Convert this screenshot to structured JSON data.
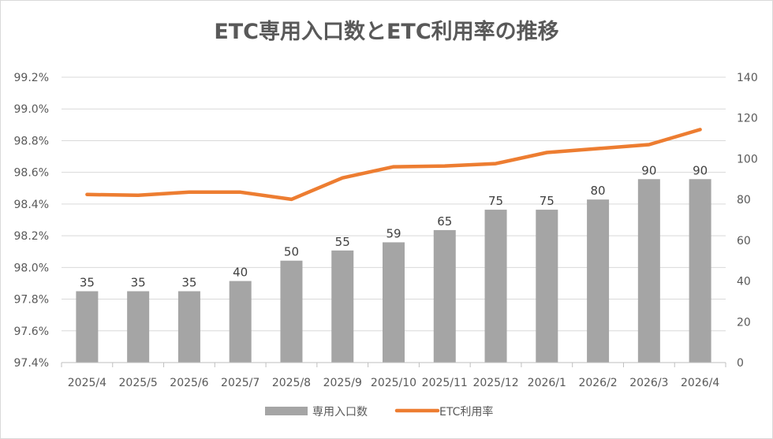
{
  "chart_data": {
    "type": "bar",
    "title": "ETC専用入口数とETC利用率の推移",
    "categories": [
      "2025/4",
      "2025/5",
      "2025/6",
      "2025/7",
      "2025/8",
      "2025/9",
      "2025/10",
      "2025/11",
      "2025/12",
      "2026/1",
      "2026/2",
      "2026/3",
      "2026/4"
    ],
    "series": [
      {
        "name": "専用入口数",
        "type": "bar",
        "axis": "right",
        "color": "#a5a5a5",
        "values": [
          35,
          35,
          35,
          40,
          50,
          55,
          59,
          65,
          75,
          75,
          80,
          90,
          90
        ]
      },
      {
        "name": "ETC利用率",
        "type": "line",
        "axis": "left",
        "color": "#ed7d31",
        "values": [
          98.46,
          98.455,
          98.475,
          98.475,
          98.43,
          98.565,
          98.635,
          98.64,
          98.655,
          98.725,
          98.75,
          98.775,
          98.87
        ]
      }
    ],
    "y_left": {
      "min": 97.4,
      "max": 99.2,
      "step": 0.2,
      "ticks": [
        "97.4%",
        "97.6%",
        "97.8%",
        "98.0%",
        "98.2%",
        "98.4%",
        "98.6%",
        "98.8%",
        "99.0%",
        "99.2%"
      ]
    },
    "y_right": {
      "min": 0,
      "max": 140,
      "step": 20,
      "ticks": [
        "0",
        "20",
        "40",
        "60",
        "80",
        "100",
        "120",
        "140"
      ]
    },
    "data_labels": [
      "35",
      "35",
      "35",
      "40",
      "50",
      "55",
      "59",
      "65",
      "75",
      "75",
      "80",
      "90",
      "90"
    ],
    "grid": true,
    "legend": "bottom"
  }
}
